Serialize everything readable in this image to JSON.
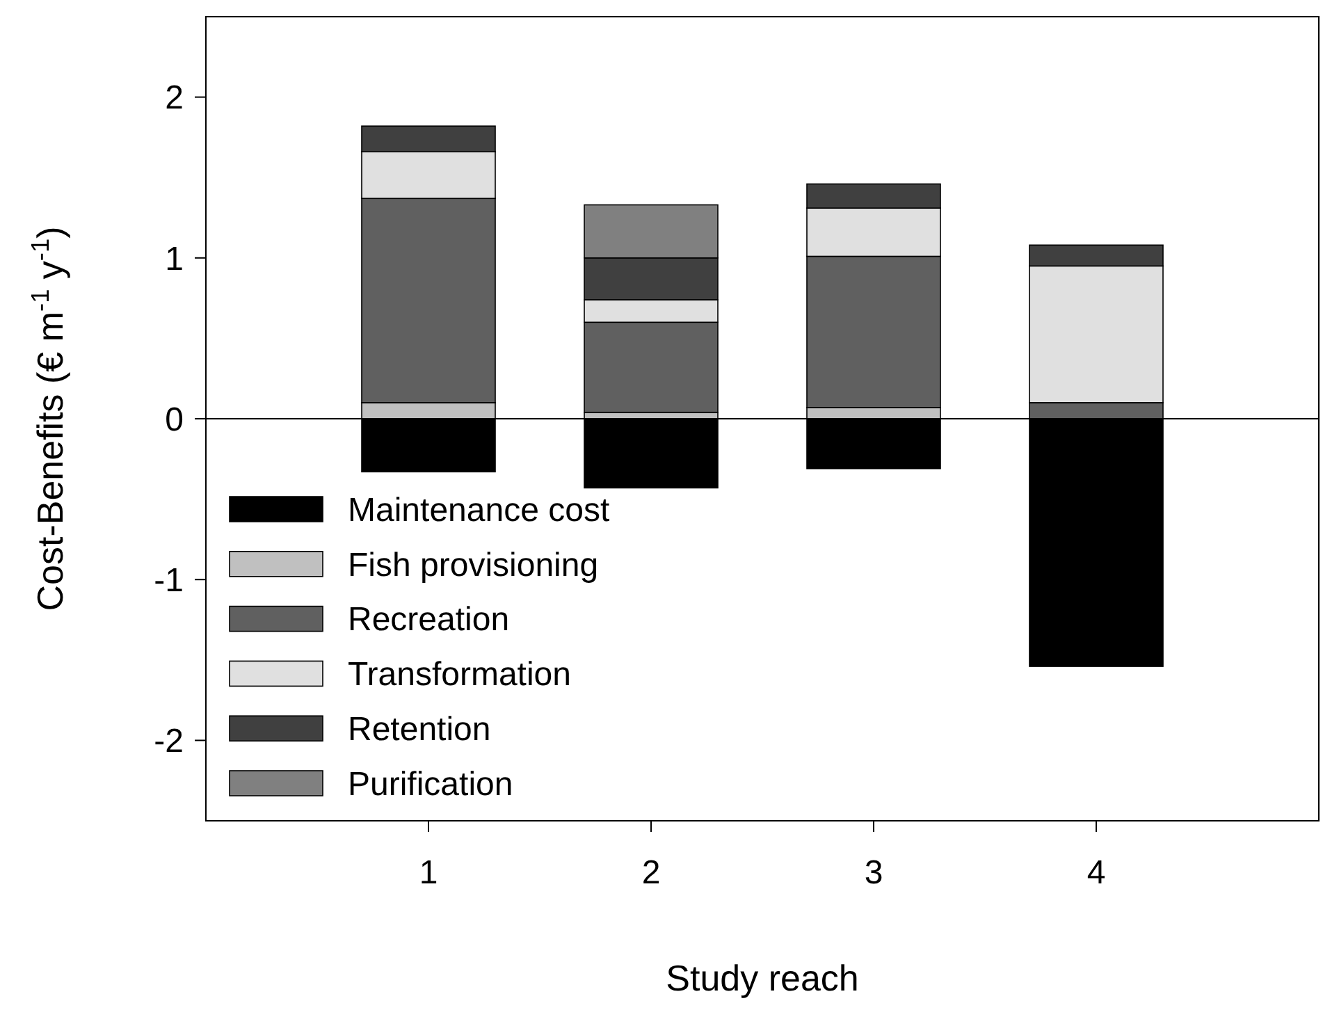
{
  "chart_data": {
    "type": "bar",
    "stacked": true,
    "xlabel": "Study reach",
    "ylabel": "Cost-Benefits (€ m$^{-1}$ y$^{-1}$)",
    "x": [
      1,
      2,
      3,
      4
    ],
    "xlim": [
      0,
      5
    ],
    "xticks": [
      1,
      2,
      3,
      4
    ],
    "ylim": [
      -2.5,
      2.5
    ],
    "yticks": [
      -2,
      -1,
      0,
      1,
      2
    ],
    "series": [
      {
        "name": "Maintenance cost",
        "color": "#000000",
        "values": [
          -0.33,
          -0.43,
          -0.31,
          -1.54
        ]
      },
      {
        "name": "Fish provisioning",
        "color": "#c0c0c0",
        "values": [
          0.1,
          0.04,
          0.07,
          0
        ]
      },
      {
        "name": "Recreation",
        "color": "#606060",
        "values": [
          1.27,
          0.56,
          0.94,
          0.1
        ]
      },
      {
        "name": "Transformation",
        "color": "#e0e0e0",
        "values": [
          0.29,
          0.14,
          0.3,
          0.85
        ]
      },
      {
        "name": "Retention",
        "color": "#404040",
        "values": [
          0.16,
          0.26,
          0.15,
          0.13
        ]
      },
      {
        "name": "Purification",
        "color": "#808080",
        "values": [
          0,
          0.33,
          0,
          0
        ]
      }
    ],
    "ref_lines": [
      {
        "axis": "y",
        "value": 0,
        "label": null
      }
    ],
    "legend": "bottom left",
    "grid": false
  }
}
